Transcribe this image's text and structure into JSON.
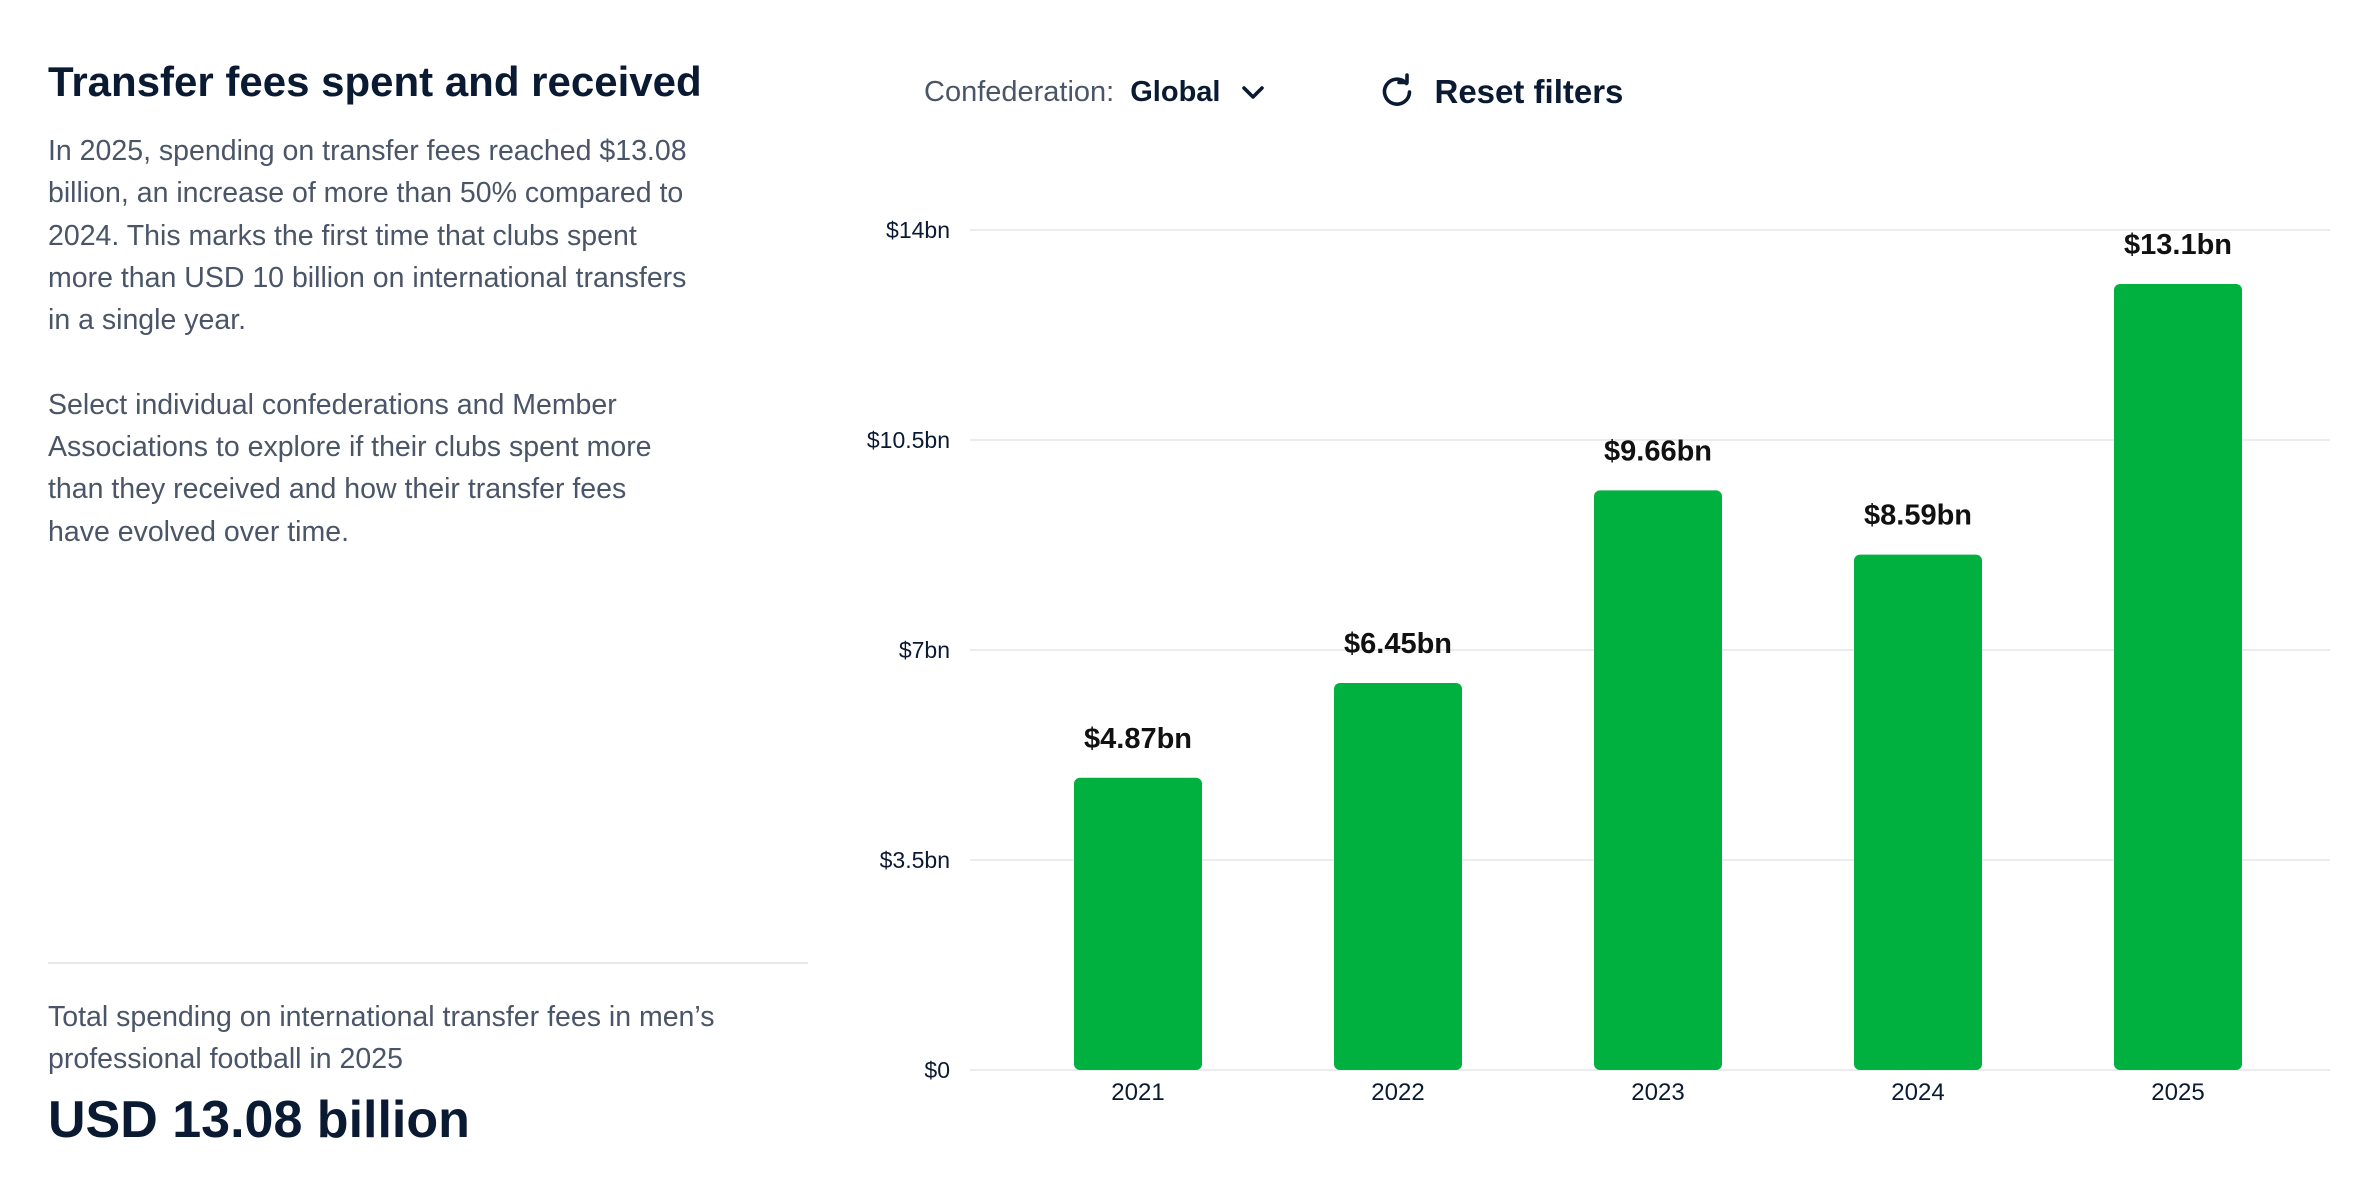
{
  "left": {
    "title": "Transfer fees spent and received",
    "paragraph1": "In 2025, spending on transfer fees reached $13.08 billion, an increase of more than 50% compared to 2024. This marks the first time that clubs spent more than USD 10 billion on international transfers in a single year.",
    "paragraph2": "Select individual confederations and Member Associations to explore if their clubs spent more than they received and how their transfer fees have evolved over time.",
    "total_label": "Total spending on international transfer fees in men’s professional football in 2025",
    "total_value": "USD 13.08 billion"
  },
  "filters": {
    "confederation_label": "Confederation:",
    "confederation_value": "Global",
    "chevron_icon": "chevron-down-icon",
    "reset_icon": "refresh-icon",
    "reset_label": "Reset filters"
  },
  "colors": {
    "bar": "#00b140",
    "grid": "#e3e6ea",
    "heading": "#0b1a33",
    "body": "#4a5568"
  },
  "chart_data": {
    "type": "bar",
    "categories": [
      "2021",
      "2022",
      "2023",
      "2024",
      "2025"
    ],
    "values": [
      4.87,
      6.45,
      9.66,
      8.59,
      13.1
    ],
    "data_labels": [
      "$4.87bn",
      "$6.45bn",
      "$9.66bn",
      "$8.59bn",
      "$13.1bn"
    ],
    "y_ticks": [
      0,
      3.5,
      7,
      10.5,
      14
    ],
    "y_tick_labels": [
      "$0",
      "$3.5bn",
      "$7bn",
      "$10.5bn",
      "$14bn"
    ],
    "ylim": [
      0,
      14
    ],
    "grid": true,
    "legend": "none"
  }
}
